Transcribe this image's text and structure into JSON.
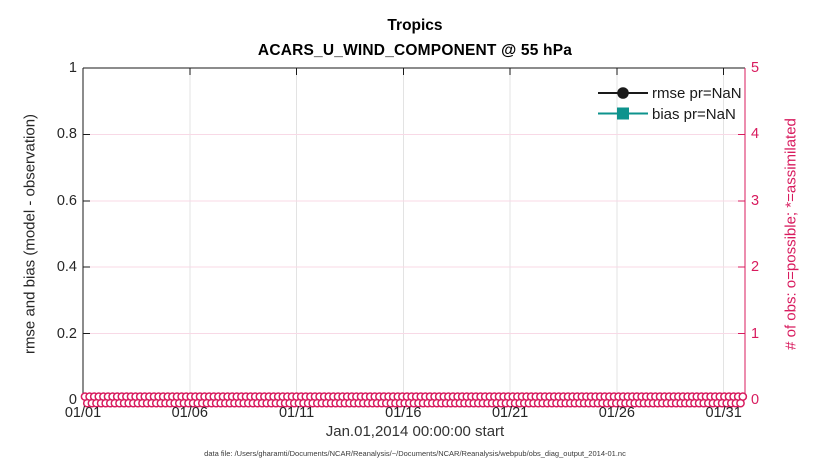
{
  "titles": {
    "line1": "Tropics",
    "line2": "ACARS_U_WIND_COMPONENT @ 55 hPa"
  },
  "axes": {
    "xlabel": "Jan.01,2014 00:00:00 start",
    "left_label": "rmse and bias (model - observation)",
    "right_label": "# of obs: o=possible; *=assimilated"
  },
  "legend": {
    "items": [
      {
        "label": "rmse pr=NaN",
        "marker": "circle",
        "color": "#1a1a1a"
      },
      {
        "label": "bias pr=NaN",
        "marker": "square",
        "color": "#0e938d"
      }
    ]
  },
  "caption": "data file: /Users/gharamti/Documents/NCAR/Reanalysis/~/Documents/NCAR/Reanalysis/webpub/obs_diag_output_2014-01.nc",
  "colors": {
    "accent_pink": "#d81b5e",
    "teal": "#0e938d",
    "axis_dark": "#1a1a1a",
    "text_dark": "#262626",
    "grid_gray": "#e3e3e3",
    "grid_pink": "#f8d9e6"
  },
  "chart_data": {
    "type": "line",
    "title": "Tropics",
    "subtitle": "ACARS_U_WIND_COMPONENT @ 55 hPa",
    "xlabel": "Jan.01,2014 00:00:00 start",
    "x_tick_labels": [
      "01/01",
      "01/06",
      "01/11",
      "01/16",
      "01/21",
      "01/26",
      "01/31"
    ],
    "x_tick_days": [
      0,
      5,
      10,
      15,
      20,
      25,
      30
    ],
    "x_range_days": [
      0,
      31
    ],
    "left_axis": {
      "label": "rmse and bias (model - observation)",
      "ticks": [
        "0",
        "0.2",
        "0.4",
        "0.6",
        "0.8",
        "1"
      ],
      "tick_values": [
        0,
        0.2,
        0.4,
        0.6,
        0.8,
        1
      ],
      "range": [
        0,
        1
      ]
    },
    "right_axis": {
      "label": "# of obs: o=possible; *=assimilated",
      "ticks": [
        "0",
        "1",
        "2",
        "3",
        "4",
        "5"
      ],
      "tick_values": [
        0,
        1,
        2,
        3,
        4,
        5
      ],
      "range": [
        0,
        5
      ]
    },
    "grid": true,
    "legend_position": "top-right-inside",
    "series": [
      {
        "name": "rmse pr=NaN",
        "axis": "left",
        "color": "#1a1a1a",
        "marker": "circle",
        "values": [],
        "note": "pr=NaN, no curve plotted"
      },
      {
        "name": "bias pr=NaN",
        "axis": "left",
        "color": "#0e938d",
        "marker": "square",
        "values": [],
        "note": "pr=NaN, no curve plotted"
      },
      {
        "name": "# of obs possible (o)",
        "axis": "right",
        "color": "#d81b5e",
        "marker": "o",
        "constant_value": 0,
        "n_times": 124
      },
      {
        "name": "# of obs assimilated (*)",
        "axis": "right",
        "color": "#d81b5e",
        "marker": "*",
        "constant_value": 0,
        "n_times": 124
      }
    ]
  }
}
